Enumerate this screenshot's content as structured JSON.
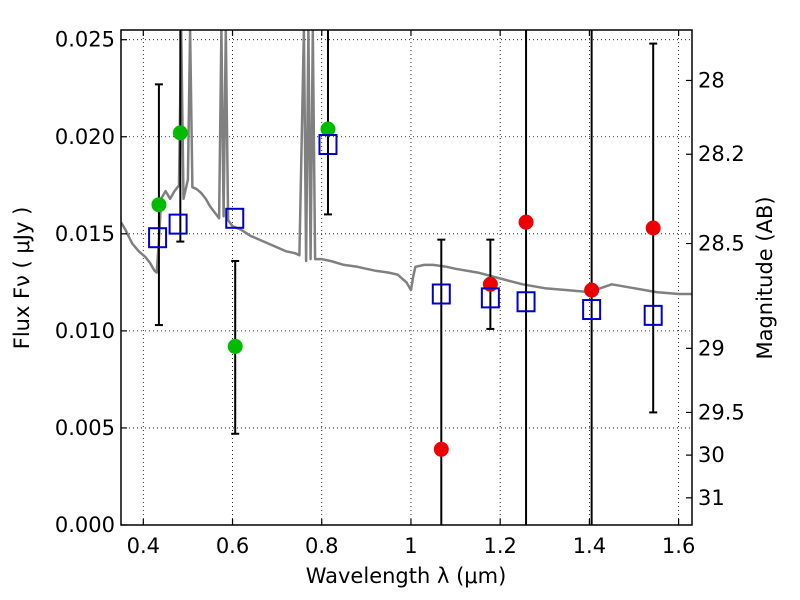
{
  "chart_data": {
    "type": "scatter",
    "xlabel": "Wavelength  λ (μm)",
    "ylabel": "Flux  Fν  ( μJy )",
    "ylabel_right": "Magnitude (AB)",
    "xlim": [
      0.35,
      1.63
    ],
    "ylim": [
      0.0,
      0.0255
    ],
    "grid": true,
    "x_ticks": [
      0.4,
      0.6,
      0.8,
      1.0,
      1.2,
      1.4,
      1.6
    ],
    "x_tick_labels": [
      "0.4",
      "0.6",
      "0.8",
      "1",
      "1.2",
      "1.4",
      "1.6"
    ],
    "y_ticks": [
      0.0,
      0.005,
      0.01,
      0.015,
      0.02,
      0.025
    ],
    "y_tick_labels": [
      "0.000",
      "0.005",
      "0.010",
      "0.015",
      "0.020",
      "0.025"
    ],
    "right_ticks": [
      {
        "label": "28",
        "flux": 0.0229
      },
      {
        "label": "28.2",
        "flux": 0.0191
      },
      {
        "label": "28.5",
        "flux": 0.0145
      },
      {
        "label": "29",
        "flux": 0.0091
      },
      {
        "label": "29.5",
        "flux": 0.0058
      },
      {
        "label": "30",
        "flux": 0.0036
      },
      {
        "label": "31",
        "flux": 0.0014
      }
    ],
    "series": [
      {
        "name": "green_observed",
        "color": "#00bb00",
        "marker": "circle",
        "points": [
          {
            "x": 0.435,
            "y": 0.0165
          },
          {
            "x": 0.483,
            "y": 0.0202
          },
          {
            "x": 0.606,
            "y": 0.0092
          },
          {
            "x": 0.814,
            "y": 0.0204
          }
        ]
      },
      {
        "name": "red_observed",
        "color": "#ee0000",
        "marker": "circle",
        "points": [
          {
            "x": 1.068,
            "y": 0.0039
          },
          {
            "x": 1.178,
            "y": 0.0124
          },
          {
            "x": 1.258,
            "y": 0.0156
          },
          {
            "x": 1.405,
            "y": 0.0121
          },
          {
            "x": 1.543,
            "y": 0.0153
          }
        ]
      },
      {
        "name": "model_photometry",
        "color": "#0000cc",
        "marker": "square-open",
        "points": [
          {
            "x": 0.432,
            "y": 0.0148
          },
          {
            "x": 0.478,
            "y": 0.0155
          },
          {
            "x": 0.605,
            "y": 0.0158
          },
          {
            "x": 0.814,
            "y": 0.0196
          },
          {
            "x": 1.068,
            "y": 0.0119
          },
          {
            "x": 1.178,
            "y": 0.0117
          },
          {
            "x": 1.258,
            "y": 0.0115
          },
          {
            "x": 1.405,
            "y": 0.0111
          },
          {
            "x": 1.543,
            "y": 0.0108
          }
        ]
      }
    ],
    "error_bars": [
      {
        "x": 0.435,
        "low": 0.0103,
        "high": 0.0227,
        "caps": true
      },
      {
        "x": 0.483,
        "low": 0.0146,
        "high": 0.0255,
        "caps": true
      },
      {
        "x": 0.606,
        "low": 0.0047,
        "high": 0.0136,
        "caps": true
      },
      {
        "x": 0.814,
        "low": 0.016,
        "high": 0.0255,
        "caps": true
      },
      {
        "x": 1.068,
        "low": 0.0,
        "high": 0.0147,
        "caps": true
      },
      {
        "x": 1.178,
        "low": 0.0101,
        "high": 0.0147,
        "caps": true
      },
      {
        "x": 1.258,
        "low": 0.0,
        "high": 0.0255,
        "caps": false
      },
      {
        "x": 1.405,
        "low": 0.0,
        "high": 0.0255,
        "caps": false
      },
      {
        "x": 1.543,
        "low": 0.0058,
        "high": 0.0248,
        "caps": true
      }
    ],
    "model_spectrum": {
      "name": "template_SED",
      "color": "#808080",
      "points": [
        [
          0.35,
          0.0156
        ],
        [
          0.36,
          0.0152
        ],
        [
          0.375,
          0.0145
        ],
        [
          0.39,
          0.0141
        ],
        [
          0.405,
          0.0138
        ],
        [
          0.415,
          0.0135
        ],
        [
          0.425,
          0.0131
        ],
        [
          0.43,
          0.013
        ],
        [
          0.435,
          0.0146
        ],
        [
          0.44,
          0.0168
        ],
        [
          0.45,
          0.0172
        ],
        [
          0.46,
          0.0168
        ],
        [
          0.47,
          0.0172
        ],
        [
          0.48,
          0.0175
        ],
        [
          0.485,
          0.0255
        ],
        [
          0.49,
          0.0168
        ],
        [
          0.5,
          0.0178
        ],
        [
          0.505,
          0.0255
        ],
        [
          0.51,
          0.0174
        ],
        [
          0.52,
          0.0173
        ],
        [
          0.53,
          0.0171
        ],
        [
          0.54,
          0.0168
        ],
        [
          0.55,
          0.0164
        ],
        [
          0.56,
          0.0161
        ],
        [
          0.57,
          0.0158
        ],
        [
          0.575,
          0.0255
        ],
        [
          0.58,
          0.0159
        ],
        [
          0.585,
          0.0255
        ],
        [
          0.59,
          0.0157
        ],
        [
          0.6,
          0.0154
        ],
        [
          0.62,
          0.0152
        ],
        [
          0.64,
          0.0149
        ],
        [
          0.66,
          0.0147
        ],
        [
          0.68,
          0.0145
        ],
        [
          0.7,
          0.0143
        ],
        [
          0.72,
          0.0141
        ],
        [
          0.74,
          0.014
        ],
        [
          0.75,
          0.0139
        ],
        [
          0.76,
          0.0255
        ],
        [
          0.765,
          0.0136
        ],
        [
          0.77,
          0.0255
        ],
        [
          0.775,
          0.0137
        ],
        [
          0.78,
          0.0255
        ],
        [
          0.785,
          0.0137
        ],
        [
          0.8,
          0.0137
        ],
        [
          0.82,
          0.0136
        ],
        [
          0.85,
          0.0134
        ],
        [
          0.88,
          0.0133
        ],
        [
          0.9,
          0.0132
        ],
        [
          0.92,
          0.0131
        ],
        [
          0.95,
          0.013
        ],
        [
          0.97,
          0.0129
        ],
        [
          0.99,
          0.0125
        ],
        [
          1.0,
          0.0121
        ],
        [
          1.005,
          0.0128
        ],
        [
          1.01,
          0.0133
        ],
        [
          1.03,
          0.0134
        ],
        [
          1.05,
          0.0134
        ],
        [
          1.08,
          0.0133
        ],
        [
          1.1,
          0.0132
        ],
        [
          1.15,
          0.013
        ],
        [
          1.2,
          0.0127
        ],
        [
          1.25,
          0.0124
        ],
        [
          1.3,
          0.0122
        ],
        [
          1.35,
          0.0121
        ],
        [
          1.4,
          0.012
        ],
        [
          1.45,
          0.0124
        ],
        [
          1.5,
          0.0122
        ],
        [
          1.55,
          0.012
        ],
        [
          1.6,
          0.0119
        ],
        [
          1.63,
          0.0119
        ]
      ]
    }
  }
}
